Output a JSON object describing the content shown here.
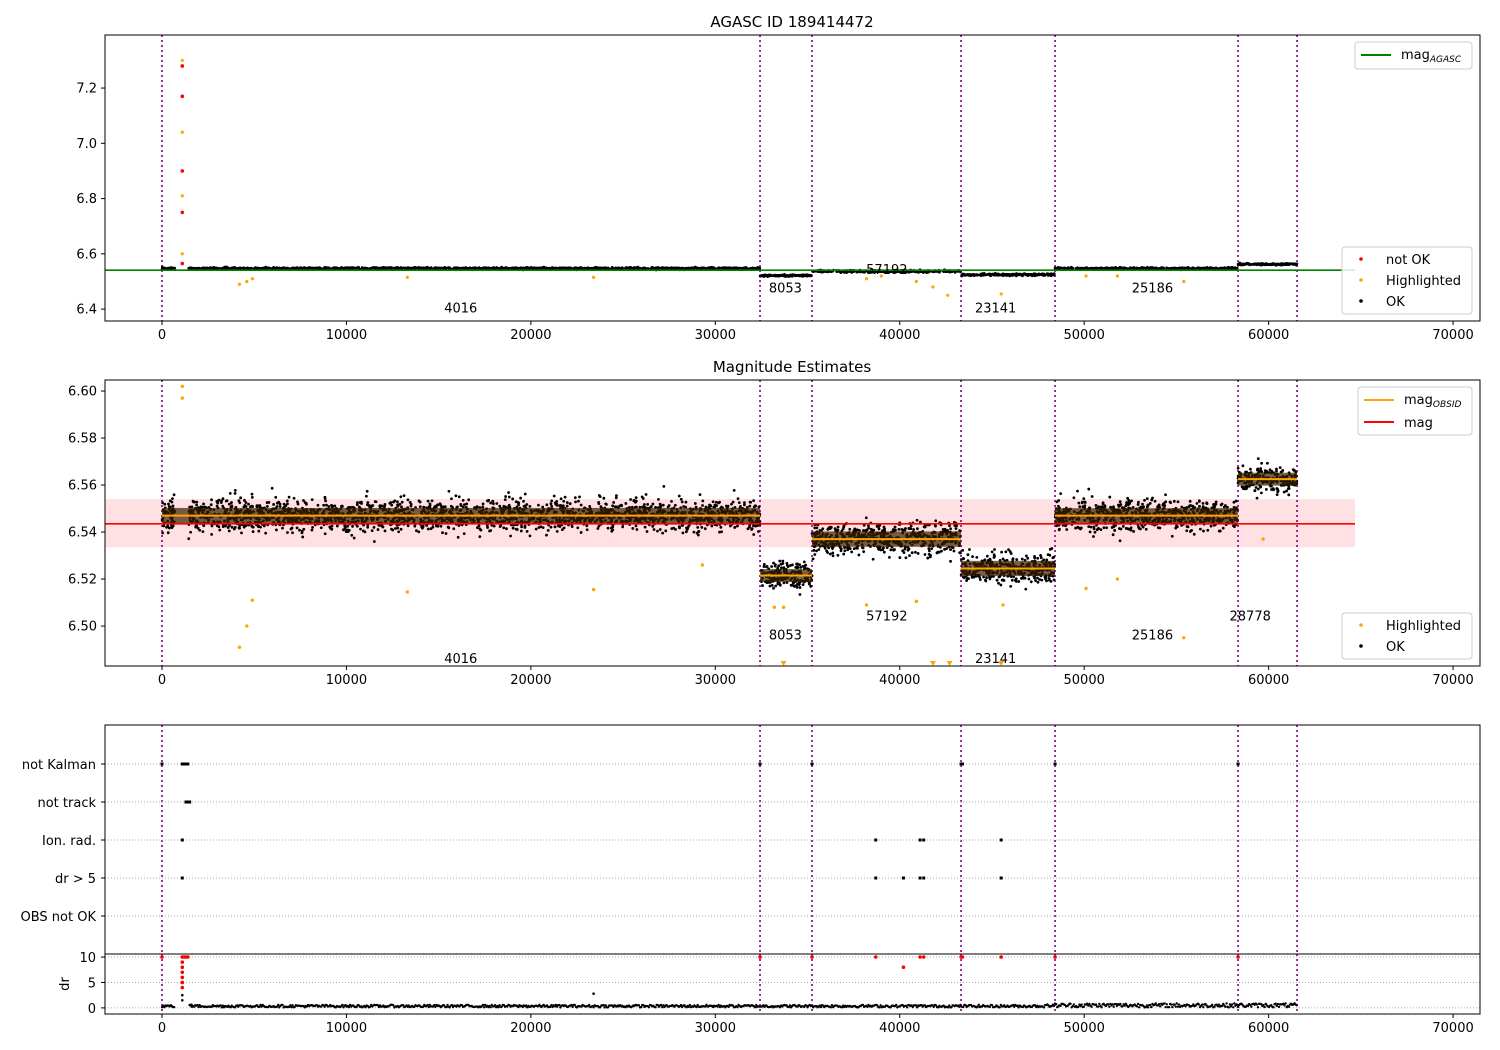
{
  "chart_data": [
    {
      "type": "scatter",
      "title": "AGASC ID 189414472",
      "xlim": [
        -3090,
        71460
      ],
      "ylim": [
        6.357,
        7.392
      ],
      "xticks": [
        0,
        10000,
        20000,
        30000,
        40000,
        50000,
        60000,
        70000
      ],
      "yticks": [
        6.4,
        6.6,
        6.8,
        7.0,
        7.2
      ],
      "reference_line": {
        "name": "mag_AGASC",
        "label_main": "mag",
        "label_sub": "AGASC",
        "value": 6.541,
        "color": "#008000"
      },
      "legend": {
        "placement": "lower-right",
        "entries": [
          {
            "label": "not OK",
            "color": "#ff0000"
          },
          {
            "label": "Highlighted",
            "color": "#ffa500"
          },
          {
            "label": "OK",
            "color": "#000000"
          }
        ]
      },
      "outliers": {
        "not_ok": [
          [
            1100,
            7.28
          ],
          [
            1100,
            7.17
          ],
          [
            1100,
            6.9
          ],
          [
            1100,
            6.75
          ],
          [
            1100,
            6.565
          ]
        ],
        "highlighted": [
          [
            1100,
            7.3
          ],
          [
            1100,
            7.04
          ],
          [
            1100,
            6.81
          ],
          [
            1100,
            6.6
          ],
          [
            4200,
            6.49
          ],
          [
            4600,
            6.5
          ],
          [
            4900,
            6.51
          ],
          [
            13300,
            6.515
          ],
          [
            23400,
            6.515
          ],
          [
            38200,
            6.51
          ],
          [
            39000,
            6.52
          ],
          [
            40900,
            6.5
          ],
          [
            41800,
            6.48
          ],
          [
            42600,
            6.45
          ],
          [
            45500,
            6.455
          ],
          [
            50100,
            6.52
          ],
          [
            51800,
            6.52
          ],
          [
            55400,
            6.5
          ]
        ]
      },
      "segment_labels": [
        {
          "text": "4016",
          "x": 16200,
          "mag": 6.405
        },
        {
          "text": "8053",
          "x": 33800,
          "mag": 6.478
        },
        {
          "text": "57192",
          "x": 39300,
          "mag": 6.546
        },
        {
          "text": "23141",
          "x": 45200,
          "mag": 6.405
        },
        {
          "text": "25186",
          "x": 53700,
          "mag": 6.478
        }
      ]
    },
    {
      "type": "scatter",
      "title": "Magnitude Estimates",
      "xlim": [
        -3090,
        71460
      ],
      "ylim": [
        6.483,
        6.6047
      ],
      "xticks": [
        0,
        10000,
        20000,
        30000,
        40000,
        50000,
        60000,
        70000
      ],
      "yticks": [
        6.5,
        6.52,
        6.54,
        6.56,
        6.58,
        6.6
      ],
      "mag": {
        "value": 6.5435,
        "band": [
          6.5335,
          6.554
        ],
        "color": "#ff0000",
        "label": "mag"
      },
      "mag_obsid_label": {
        "main": "mag",
        "sub": "OBSID"
      },
      "legend_top": {
        "placement": "upper-right"
      },
      "legend_bottom": {
        "placement": "lower-right",
        "entries": [
          {
            "label": "Highlighted",
            "color": "#ffa500"
          },
          {
            "label": "OK",
            "color": "#000000"
          }
        ]
      },
      "segments": [
        {
          "obsid": "4016",
          "start": 0,
          "end": 32424,
          "mean": 6.547,
          "spread": 0.0065,
          "label_mag": 6.4865,
          "gap": [
            700,
            1450
          ]
        },
        {
          "obsid": "8053",
          "start": 32424,
          "end": 35244,
          "mean": 6.5215,
          "spread": 0.0055,
          "label_mag": 6.4965
        },
        {
          "obsid": "57192",
          "start": 35244,
          "end": 43323,
          "mean": 6.537,
          "spread": 0.0065,
          "label_mag": 6.5045
        },
        {
          "obsid": "23141",
          "start": 43323,
          "end": 48420,
          "mean": 6.5245,
          "spread": 0.0065,
          "label_mag": 6.4865
        },
        {
          "obsid": "25186",
          "start": 48420,
          "end": 58342,
          "mean": 6.547,
          "spread": 0.0063,
          "label_mag": 6.4965
        },
        {
          "obsid": "28778",
          "start": 58342,
          "end": 61541,
          "mean": 6.5625,
          "spread": 0.0055,
          "label_mag": 6.5045
        }
      ],
      "highlighted": [
        [
          1100,
          6.602
        ],
        [
          1100,
          6.597
        ],
        [
          4200,
          6.491
        ],
        [
          4600,
          6.5
        ],
        [
          4900,
          6.511
        ],
        [
          13300,
          6.5145
        ],
        [
          23400,
          6.5155
        ],
        [
          29300,
          6.526
        ],
        [
          38200,
          6.509
        ],
        [
          40900,
          6.5105
        ],
        [
          45600,
          6.509
        ],
        [
          50100,
          6.516
        ],
        [
          51800,
          6.52
        ],
        [
          55400,
          6.495
        ],
        [
          59700,
          6.537
        ],
        [
          33200,
          6.508
        ],
        [
          33700,
          6.508
        ]
      ]
    },
    {
      "type": "scatter",
      "title": "",
      "xlim": [
        -3090,
        71460
      ],
      "categories": [
        "not Kalman",
        "not track",
        "Ion. rad.",
        "dr > 5",
        "OBS not OK"
      ],
      "flags": {
        "not Kalman": [
          0,
          1100,
          1200,
          1300,
          1400,
          32424,
          35244,
          43323,
          43400,
          48420,
          58342
        ],
        "not track": [
          1300,
          1400,
          1500
        ],
        "Ion. rad.": [
          1100,
          38700,
          41100,
          41300,
          45500
        ],
        "dr > 5": [
          1100,
          38700,
          40200,
          41100,
          41300,
          45500
        ],
        "OBS not OK": []
      },
      "dr": {
        "ylabel": "dr",
        "ylim": [
          -1.2,
          10.6
        ],
        "yticks": [
          0,
          5,
          10
        ],
        "red": [
          [
            0,
            10
          ],
          [
            1100,
            10
          ],
          [
            1200,
            10
          ],
          [
            1300,
            10
          ],
          [
            1400,
            10
          ],
          [
            1100,
            9
          ],
          [
            1100,
            8
          ],
          [
            1100,
            7
          ],
          [
            1100,
            6
          ],
          [
            1100,
            5
          ],
          [
            1100,
            4
          ],
          [
            32424,
            10
          ],
          [
            35244,
            10
          ],
          [
            38700,
            10
          ],
          [
            40200,
            8
          ],
          [
            41100,
            10
          ],
          [
            41300,
            10
          ],
          [
            43323,
            10
          ],
          [
            43400,
            10
          ],
          [
            45500,
            10
          ],
          [
            48420,
            10
          ],
          [
            58342,
            10
          ]
        ],
        "black": [
          [
            1100,
            2.5
          ],
          [
            1100,
            1.5
          ],
          [
            23400,
            2.8
          ],
          [
            1600,
            0.6
          ]
        ]
      },
      "xticks": [
        0,
        10000,
        20000,
        30000,
        40000,
        50000,
        60000,
        70000
      ]
    }
  ],
  "vlines": [
    0,
    32424,
    35244,
    43323,
    48420,
    58342,
    61541
  ],
  "colors": {
    "vline": "#800080",
    "ok": "#000000",
    "highlighted": "#ffa500",
    "not_ok": "#ff0000",
    "band": "#ffe0e3"
  }
}
